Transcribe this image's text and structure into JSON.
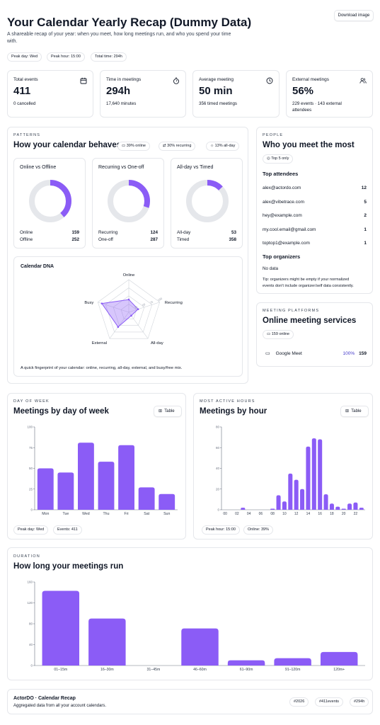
{
  "header": {
    "title": "Your Calendar Yearly Recap (Dummy Data)",
    "subtitle_line1": "A shareable recap of your year: when you meet, how long meetings run, and who you spend your time",
    "subtitle_line2": "with.",
    "download_label": "Download image",
    "pills": [
      "Peak day: Wed",
      "Peak hour: 15:00",
      "Total time: 294h"
    ]
  },
  "stats": [
    {
      "label": "Total events",
      "value": "411",
      "sub": "0 cancelled",
      "icon": "calendar-icon"
    },
    {
      "label": "Time in meetings",
      "value": "294h",
      "sub": "17,640 minutes",
      "icon": "stopwatch-icon"
    },
    {
      "label": "Average meeting",
      "value": "50 min",
      "sub": "356 timed meetings",
      "icon": "clock-icon"
    },
    {
      "label": "External meetings",
      "value": "56%",
      "sub_line1": "229 events · 143 external",
      "sub_line2": "attendees",
      "icon": "users-icon"
    }
  ],
  "patterns": {
    "eyebrow": "PATTERNS",
    "title": "How your calendar behaves",
    "pills": [
      "39% online",
      "30% recurring",
      "13% all-day"
    ],
    "donuts": [
      {
        "title": "Online vs Offline",
        "fraction": 0.387,
        "rows": [
          {
            "label": "Online",
            "value": "159"
          },
          {
            "label": "Offline",
            "value": "252"
          }
        ]
      },
      {
        "title": "Recurring vs One-off",
        "fraction": 0.302,
        "rows": [
          {
            "label": "Recurring",
            "value": "124"
          },
          {
            "label": "One-off",
            "value": "287"
          }
        ]
      },
      {
        "title": "All-day vs Timed",
        "fraction": 0.129,
        "rows": [
          {
            "label": "All-day",
            "value": "53"
          },
          {
            "label": "Timed",
            "value": "358"
          }
        ]
      }
    ],
    "dna": {
      "title": "Calendar DNA",
      "axes": [
        "Online",
        "Recurring",
        "All-day",
        "External",
        "Busy"
      ],
      "values": [
        0.39,
        0.3,
        0.13,
        0.56,
        0.87
      ],
      "ring_labels": [
        "25",
        "50",
        "75",
        "100"
      ],
      "caption": "A quick fingerprint of your calendar: online, recurring, all-day, external, and busy/free mix."
    }
  },
  "people": {
    "eyebrow": "PEOPLE",
    "title": "Who you meet the most",
    "pill": "Top 5 only",
    "attendees_title": "Top attendees",
    "attendees": [
      {
        "email": "alex@actordo.com",
        "count": "12"
      },
      {
        "email": "alex@vibetrace.com",
        "count": "5"
      },
      {
        "email": "hey@example.com",
        "count": "2"
      },
      {
        "email": "my.cool.email@gmail.com",
        "count": "1"
      },
      {
        "email": "toptop1@example.com",
        "count": "1"
      }
    ],
    "organizers_title": "Top organizers",
    "organizers_empty": "No data",
    "tip_line1": "Tip: organizers might be empty if your normalized",
    "tip_line2": "events don't include organizer/self data consistently."
  },
  "platforms": {
    "eyebrow": "MEETING PLATFORMS",
    "title": "Online meeting services",
    "pill": "159 online",
    "rows": [
      {
        "name": "Google Meet",
        "pct": "100%",
        "count": "159"
      }
    ]
  },
  "day_of_week": {
    "eyebrow": "DAY OF WEEK",
    "title": "Meetings by day of week",
    "table_label": "Table",
    "pills": [
      "Peak day: Wed",
      "Events: 411"
    ]
  },
  "hours": {
    "eyebrow": "MOST ACTIVE HOURS",
    "title": "Meetings by hour",
    "table_label": "Table",
    "pills": [
      "Peak hour: 15:00",
      "Online: 39%"
    ]
  },
  "duration": {
    "eyebrow": "DURATION",
    "title": "How long your meetings run"
  },
  "footer": {
    "title": "ActorDO · Calendar Recap",
    "sub": "Aggregated data from all your account calendars.",
    "tags": [
      "#2026",
      "#411events",
      "#294h"
    ]
  },
  "colors": {
    "accent": "#8b5cf6",
    "track": "#e5e7eb",
    "text": "#111827"
  },
  "chart_data": [
    {
      "type": "bar",
      "categories": [
        "Mon",
        "Tue",
        "Wed",
        "Thu",
        "Fri",
        "Sat",
        "Sun"
      ],
      "values": [
        50,
        45,
        81,
        58,
        78,
        27,
        19
      ],
      "ylim": [
        0,
        100
      ],
      "yticks": [
        0,
        25,
        50,
        75,
        100
      ]
    },
    {
      "type": "bar",
      "categories": [
        "00",
        "01",
        "02",
        "03",
        "04",
        "05",
        "06",
        "07",
        "08",
        "09",
        "10",
        "11",
        "12",
        "13",
        "14",
        "15",
        "16",
        "17",
        "18",
        "19",
        "20",
        "21",
        "22",
        "23"
      ],
      "tick_labels": [
        "00",
        "02",
        "04",
        "06",
        "08",
        "10",
        "12",
        "14",
        "16",
        "18",
        "20",
        "22"
      ],
      "values": [
        0,
        0,
        0,
        2,
        0,
        0,
        0,
        0,
        1,
        14,
        8,
        35,
        29,
        20,
        61,
        69,
        68,
        15,
        6,
        3,
        1,
        6,
        7,
        2
      ],
      "ylim": [
        0,
        80
      ],
      "yticks": [
        0,
        20,
        40,
        60,
        80
      ]
    },
    {
      "type": "bar",
      "categories": [
        "01–15m",
        "16–30m",
        "31–45m",
        "46–60m",
        "61–90m",
        "91–120m",
        "120m+"
      ],
      "values": [
        143,
        90,
        0,
        71,
        10,
        14,
        26
      ],
      "ylim": [
        0,
        160
      ],
      "yticks": [
        0,
        40,
        80,
        120,
        160
      ]
    }
  ]
}
